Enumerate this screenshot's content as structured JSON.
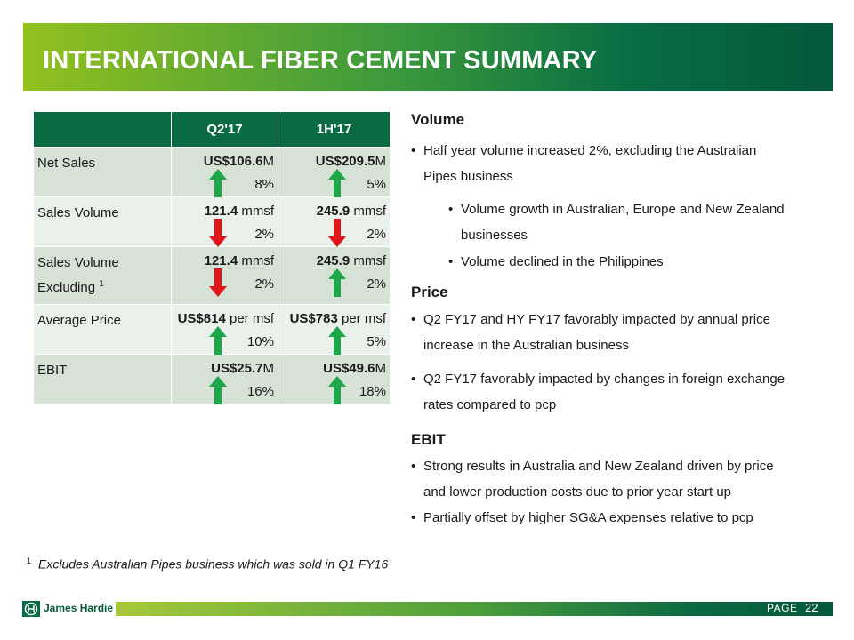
{
  "title": "INTERNATIONAL FIBER CEMENT SUMMARY",
  "table": {
    "headers": [
      "Q2'17",
      "1H'17"
    ],
    "rows": [
      {
        "label": "Net Sales",
        "q2": {
          "value_bold": "US$106.6",
          "value_rest": "M",
          "change": "8%",
          "direction": "up"
        },
        "h1": {
          "value_bold": "US$209.5",
          "value_rest": "M",
          "change": "5%",
          "direction": "up"
        }
      },
      {
        "label": "Sales Volume",
        "q2": {
          "value_bold": "121.4",
          "value_rest": " mmsf",
          "change": "2%",
          "direction": "down"
        },
        "h1": {
          "value_bold": "245.9",
          "value_rest": " mmsf",
          "change": "2%",
          "direction": "down"
        }
      },
      {
        "label_line1": "Sales Volume",
        "label_line2": "Excluding",
        "label_sup": "1",
        "q2": {
          "value_bold": "121.4",
          "value_rest": " mmsf",
          "change": "2%",
          "direction": "down"
        },
        "h1": {
          "value_bold": "245.9",
          "value_rest": " mmsf",
          "change": "2%",
          "direction": "up"
        }
      },
      {
        "label": "Average Price",
        "q2": {
          "value_bold": "US$814",
          "value_rest": " per msf",
          "change": "10%",
          "direction": "up"
        },
        "h1": {
          "value_bold": "US$783",
          "value_rest": " per msf",
          "change": "5%",
          "direction": "up"
        }
      },
      {
        "label": "EBIT",
        "q2": {
          "value_bold": "US$25.7",
          "value_rest": "M",
          "change": "16%",
          "direction": "up"
        },
        "h1": {
          "value_bold": "US$49.6",
          "value_rest": "M",
          "change": "18%",
          "direction": "up"
        }
      }
    ]
  },
  "sections": {
    "volume": {
      "heading": "Volume",
      "b1_line1": "Half year volume increased 2%, excluding the Australian",
      "b1_line2": "Pipes business",
      "s1_line1": "Volume growth in Australian, Europe and New Zealand",
      "s1_line2": "businesses",
      "s2": "Volume declined in the Philippines"
    },
    "price": {
      "heading": "Price",
      "b1_line1": "Q2 FY17 and HY FY17 favorably impacted by annual price",
      "b1_line2": "increase in the Australian business",
      "b2_line1": "Q2 FY17 favorably impacted by changes in foreign exchange",
      "b2_line2": "rates compared to pcp"
    },
    "ebit": {
      "heading": "EBIT",
      "b1_line1": "Strong results in Australia and New Zealand driven by price",
      "b1_line2": "and lower production costs due to prior year start up",
      "b2": "Partially offset by higher SG&A expenses relative to pcp"
    }
  },
  "footnote": {
    "marker": "1",
    "text": "Excludes Australian Pipes business which was sold in Q1 FY16"
  },
  "footer": {
    "company": "James Hardie",
    "page_label": "PAGE",
    "page_number": "22"
  },
  "colors": {
    "up_arrow": "#1ea64a",
    "down_arrow": "#e0161b",
    "header_green": "#0a6a42"
  }
}
